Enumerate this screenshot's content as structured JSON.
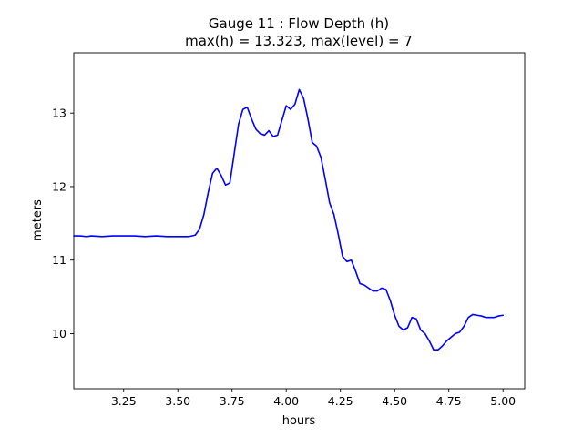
{
  "chart_data": {
    "type": "line",
    "title": "Gauge 11 : Flow Depth (h)",
    "subtitle": "max(h) =  13.323,    max(level) = 7",
    "xlabel": "hours",
    "ylabel": "meters",
    "xlim": [
      3.02,
      5.1
    ],
    "ylim": [
      9.25,
      13.82
    ],
    "xticks": [
      3.25,
      3.5,
      3.75,
      4.0,
      4.25,
      4.5,
      4.75,
      5.0
    ],
    "xtick_labels": [
      "3.25",
      "3.50",
      "3.75",
      "4.00",
      "4.25",
      "4.50",
      "4.75",
      "5.00"
    ],
    "yticks": [
      10,
      11,
      12,
      13
    ],
    "ytick_labels": [
      "10",
      "11",
      "12",
      "13"
    ],
    "grid": false,
    "series": [
      {
        "color": "#0000ff",
        "x": [
          3.02,
          3.05,
          3.08,
          3.1,
          3.15,
          3.2,
          3.25,
          3.3,
          3.35,
          3.4,
          3.45,
          3.5,
          3.55,
          3.58,
          3.6,
          3.62,
          3.64,
          3.66,
          3.68,
          3.7,
          3.72,
          3.74,
          3.76,
          3.78,
          3.8,
          3.82,
          3.84,
          3.86,
          3.88,
          3.9,
          3.92,
          3.94,
          3.96,
          3.98,
          4.0,
          4.02,
          4.04,
          4.06,
          4.08,
          4.1,
          4.12,
          4.14,
          4.16,
          4.18,
          4.2,
          4.22,
          4.24,
          4.26,
          4.28,
          4.3,
          4.32,
          4.34,
          4.36,
          4.38,
          4.4,
          4.42,
          4.44,
          4.46,
          4.48,
          4.5,
          4.52,
          4.54,
          4.56,
          4.58,
          4.6,
          4.62,
          4.64,
          4.66,
          4.68,
          4.7,
          4.72,
          4.74,
          4.76,
          4.78,
          4.8,
          4.82,
          4.84,
          4.86,
          4.88,
          4.9,
          4.92,
          4.94,
          4.96,
          4.98,
          5.0
        ],
        "y": [
          11.33,
          11.33,
          11.32,
          11.33,
          11.32,
          11.33,
          11.33,
          11.33,
          11.32,
          11.33,
          11.32,
          11.32,
          11.32,
          11.34,
          11.42,
          11.62,
          11.92,
          12.18,
          12.25,
          12.15,
          12.02,
          12.05,
          12.45,
          12.85,
          13.05,
          13.08,
          12.92,
          12.78,
          12.72,
          12.7,
          12.76,
          12.68,
          12.7,
          12.9,
          13.1,
          13.05,
          13.12,
          13.32,
          13.2,
          12.92,
          12.6,
          12.55,
          12.4,
          12.1,
          11.78,
          11.62,
          11.35,
          11.05,
          10.98,
          11.0,
          10.85,
          10.68,
          10.66,
          10.62,
          10.58,
          10.58,
          10.62,
          10.6,
          10.45,
          10.25,
          10.1,
          10.05,
          10.08,
          10.22,
          10.2,
          10.05,
          10.0,
          9.9,
          9.78,
          9.78,
          9.83,
          9.9,
          9.95,
          10.0,
          10.02,
          10.1,
          10.22,
          10.26,
          10.25,
          10.24,
          10.22,
          10.22,
          10.22,
          10.24,
          10.25
        ]
      }
    ]
  }
}
